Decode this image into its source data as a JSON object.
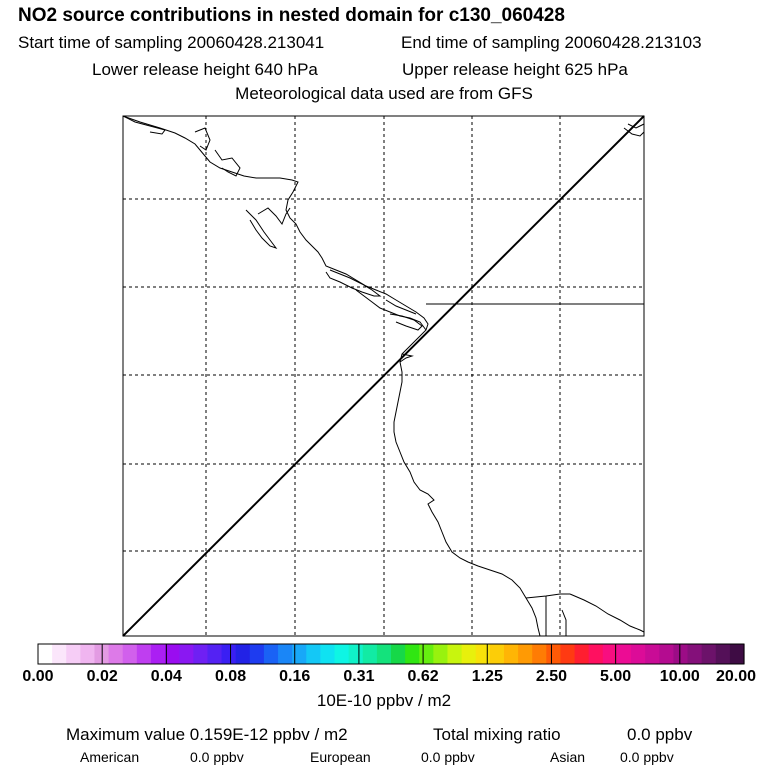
{
  "header": {
    "title": "NO2 source contributions in nested domain for c130_060428",
    "start_time": "Start time of sampling 20060428.213041",
    "end_time": "End time of sampling 20060428.213103",
    "lower_height": "Lower release height  640 hPa",
    "upper_height": "Upper release height  625 hPa",
    "met_data": "Meteorological data used are from GFS"
  },
  "colorbar": {
    "tick_labels": [
      "0.00",
      "0.02",
      "0.04",
      "0.08",
      "0.16",
      "0.31",
      "0.62",
      "1.25",
      "2.50",
      "5.00",
      "10.00",
      "20.00"
    ],
    "units": "10E-10 ppbv / m2",
    "colors": [
      "#ffffff",
      "#fbe6fb",
      "#f6cdf6",
      "#f0b5f0",
      "#e39be3",
      "#dd7ae8",
      "#d160ec",
      "#bf3ef0",
      "#ab1ff3",
      "#9a0df0",
      "#8a18f2",
      "#6f20f3",
      "#5422f3",
      "#3a1ff3",
      "#2222e6",
      "#1e3cf0",
      "#1a62f5",
      "#1a86f7",
      "#18a8f8",
      "#14c8f6",
      "#0fe2f2",
      "#0ef5e4",
      "#10f2c8",
      "#12eba4",
      "#14e27c",
      "#16d848",
      "#30e612",
      "#66ef10",
      "#98f20e",
      "#c8f50e",
      "#e8f00c",
      "#f8e20a",
      "#fccd08",
      "#ffb505",
      "#ff9a04",
      "#ff7c04",
      "#ff5a06",
      "#ff3a12",
      "#ff1e30",
      "#ff1060",
      "#f80e80",
      "#ec0c94",
      "#dc0c98",
      "#c90c96",
      "#b40c90",
      "#9c0c86",
      "#84107a",
      "#6c126a",
      "#541058",
      "#3e0c44"
    ]
  },
  "footer": {
    "max_value": "Maximum value  0.159E-12 ppbv / m2",
    "total_label": "Total mixing ratio",
    "total_value": "0.0 ppbv",
    "american_label": "American",
    "american_value": "0.0 ppbv",
    "european_label": "European",
    "european_value": "0.0 ppbv",
    "asian_label": "Asian",
    "asian_value": "0.0 ppbv"
  }
}
